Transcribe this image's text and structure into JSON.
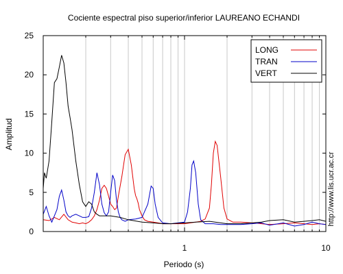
{
  "chart_data": {
    "type": "line",
    "title": "Cociente espectral piso superior/inferior LAUREANO ECHANDI",
    "xlabel": "Periodo (s)",
    "ylabel": "Amplitud",
    "xscale": "log",
    "xlim": [
      0.1,
      10
    ],
    "ylim": [
      0,
      25
    ],
    "xticks": [
      {
        "value": 1,
        "label": "1"
      },
      {
        "value": 10,
        "label": "10"
      }
    ],
    "yticks": [
      {
        "value": 0,
        "label": "0"
      },
      {
        "value": 5,
        "label": "5"
      },
      {
        "value": 10,
        "label": "10"
      },
      {
        "value": 15,
        "label": "15"
      },
      {
        "value": 20,
        "label": "20"
      },
      {
        "value": 25,
        "label": "25"
      }
    ],
    "grid": "vertical, log minor",
    "legend_position": "top-right",
    "side_label": "http://www.lis.ucr.ac.cr",
    "series": [
      {
        "name": "LONG",
        "color": "#e00000",
        "x": [
          0.1,
          0.11,
          0.12,
          0.13,
          0.14,
          0.15,
          0.16,
          0.17,
          0.18,
          0.19,
          0.2,
          0.21,
          0.22,
          0.23,
          0.24,
          0.25,
          0.26,
          0.27,
          0.28,
          0.29,
          0.3,
          0.31,
          0.32,
          0.33,
          0.34,
          0.36,
          0.38,
          0.4,
          0.42,
          0.44,
          0.45,
          0.46,
          0.47,
          0.48,
          0.5,
          0.52,
          0.55,
          0.6,
          0.65,
          0.7,
          0.8,
          0.9,
          1.0,
          1.1,
          1.2,
          1.3,
          1.4,
          1.5,
          1.55,
          1.6,
          1.65,
          1.7,
          1.8,
          1.9,
          2.0,
          2.2,
          2.5,
          3.0,
          3.5,
          4,
          5,
          6,
          7,
          8,
          9,
          10
        ],
        "y": [
          1.5,
          1.4,
          1.8,
          1.5,
          2.2,
          1.5,
          1.2,
          1.1,
          1.0,
          1.1,
          1.0,
          1.2,
          1.5,
          2.0,
          2.8,
          4.0,
          5.5,
          5.9,
          5.5,
          4.5,
          3.5,
          3.2,
          2.8,
          3.0,
          4.5,
          7.0,
          9.8,
          10.5,
          8.5,
          5.5,
          4.6,
          4.2,
          3.6,
          2.8,
          2.0,
          1.5,
          1.3,
          1.2,
          1.1,
          1.0,
          1.0,
          1.0,
          1.0,
          1.1,
          1.2,
          1.3,
          1.6,
          3.0,
          6.0,
          10.0,
          11.5,
          11.0,
          7.0,
          3.0,
          1.6,
          1.2,
          1.2,
          1.1,
          1.0,
          0.9,
          1.0,
          1.1,
          1.0,
          0.9,
          1.0,
          0.9
        ]
      },
      {
        "name": "TRAN",
        "color": "#0000c8",
        "x": [
          0.1,
          0.105,
          0.11,
          0.115,
          0.12,
          0.125,
          0.13,
          0.135,
          0.14,
          0.145,
          0.15,
          0.155,
          0.16,
          0.17,
          0.18,
          0.19,
          0.2,
          0.21,
          0.22,
          0.23,
          0.24,
          0.25,
          0.26,
          0.27,
          0.28,
          0.29,
          0.3,
          0.31,
          0.32,
          0.33,
          0.34,
          0.35,
          0.36,
          0.38,
          0.4,
          0.45,
          0.5,
          0.55,
          0.58,
          0.6,
          0.62,
          0.65,
          0.7,
          0.8,
          0.9,
          1.0,
          1.05,
          1.1,
          1.13,
          1.16,
          1.2,
          1.25,
          1.3,
          1.4,
          1.6,
          1.8,
          2.0,
          2.5,
          3.0,
          3.5,
          4,
          5,
          6,
          7,
          8,
          9,
          10
        ],
        "y": [
          2.2,
          3.2,
          2.0,
          1.2,
          2.0,
          2.8,
          4.5,
          5.3,
          4.0,
          2.5,
          2.0,
          1.8,
          2.0,
          2.2,
          2.0,
          1.8,
          1.8,
          1.9,
          3.0,
          5.0,
          7.5,
          6.0,
          3.5,
          2.4,
          2.0,
          2.5,
          5.0,
          7.2,
          6.5,
          4.0,
          2.5,
          1.8,
          1.5,
          1.3,
          1.5,
          1.6,
          1.8,
          3.5,
          5.8,
          5.5,
          3.5,
          1.8,
          1.1,
          1.0,
          1.1,
          1.2,
          2.5,
          5.5,
          8.5,
          9.0,
          7.5,
          3.5,
          1.5,
          1.0,
          1.0,
          0.9,
          0.9,
          0.9,
          1.0,
          1.1,
          0.8,
          1.1,
          0.7,
          0.9,
          1.2,
          1.0,
          0.9
        ]
      },
      {
        "name": "VERT",
        "color": "#000000",
        "x": [
          0.1,
          0.102,
          0.105,
          0.11,
          0.115,
          0.12,
          0.125,
          0.13,
          0.135,
          0.14,
          0.145,
          0.15,
          0.155,
          0.16,
          0.17,
          0.18,
          0.19,
          0.2,
          0.21,
          0.22,
          0.23,
          0.24,
          0.25,
          0.27,
          0.3,
          0.35,
          0.4,
          0.5,
          0.6,
          0.7,
          0.8,
          1.0,
          1.2,
          1.5,
          2.0,
          2.5,
          3.0,
          3.5,
          4.0,
          5.0,
          6.0,
          7.0,
          8.0,
          9.0,
          10
        ],
        "y": [
          5.5,
          7.5,
          6.8,
          9.0,
          14.0,
          19.0,
          19.5,
          21.0,
          22.5,
          21.5,
          19.0,
          16.0,
          14.5,
          13.0,
          9.0,
          6.0,
          3.8,
          3.2,
          3.8,
          3.5,
          2.5,
          2.2,
          2.0,
          2.0,
          2.0,
          1.8,
          1.5,
          1.2,
          1.1,
          1.0,
          1.0,
          1.1,
          1.2,
          1.3,
          1.0,
          1.0,
          1.1,
          1.2,
          1.4,
          1.5,
          1.2,
          1.3,
          1.4,
          1.5,
          1.3
        ]
      }
    ]
  }
}
